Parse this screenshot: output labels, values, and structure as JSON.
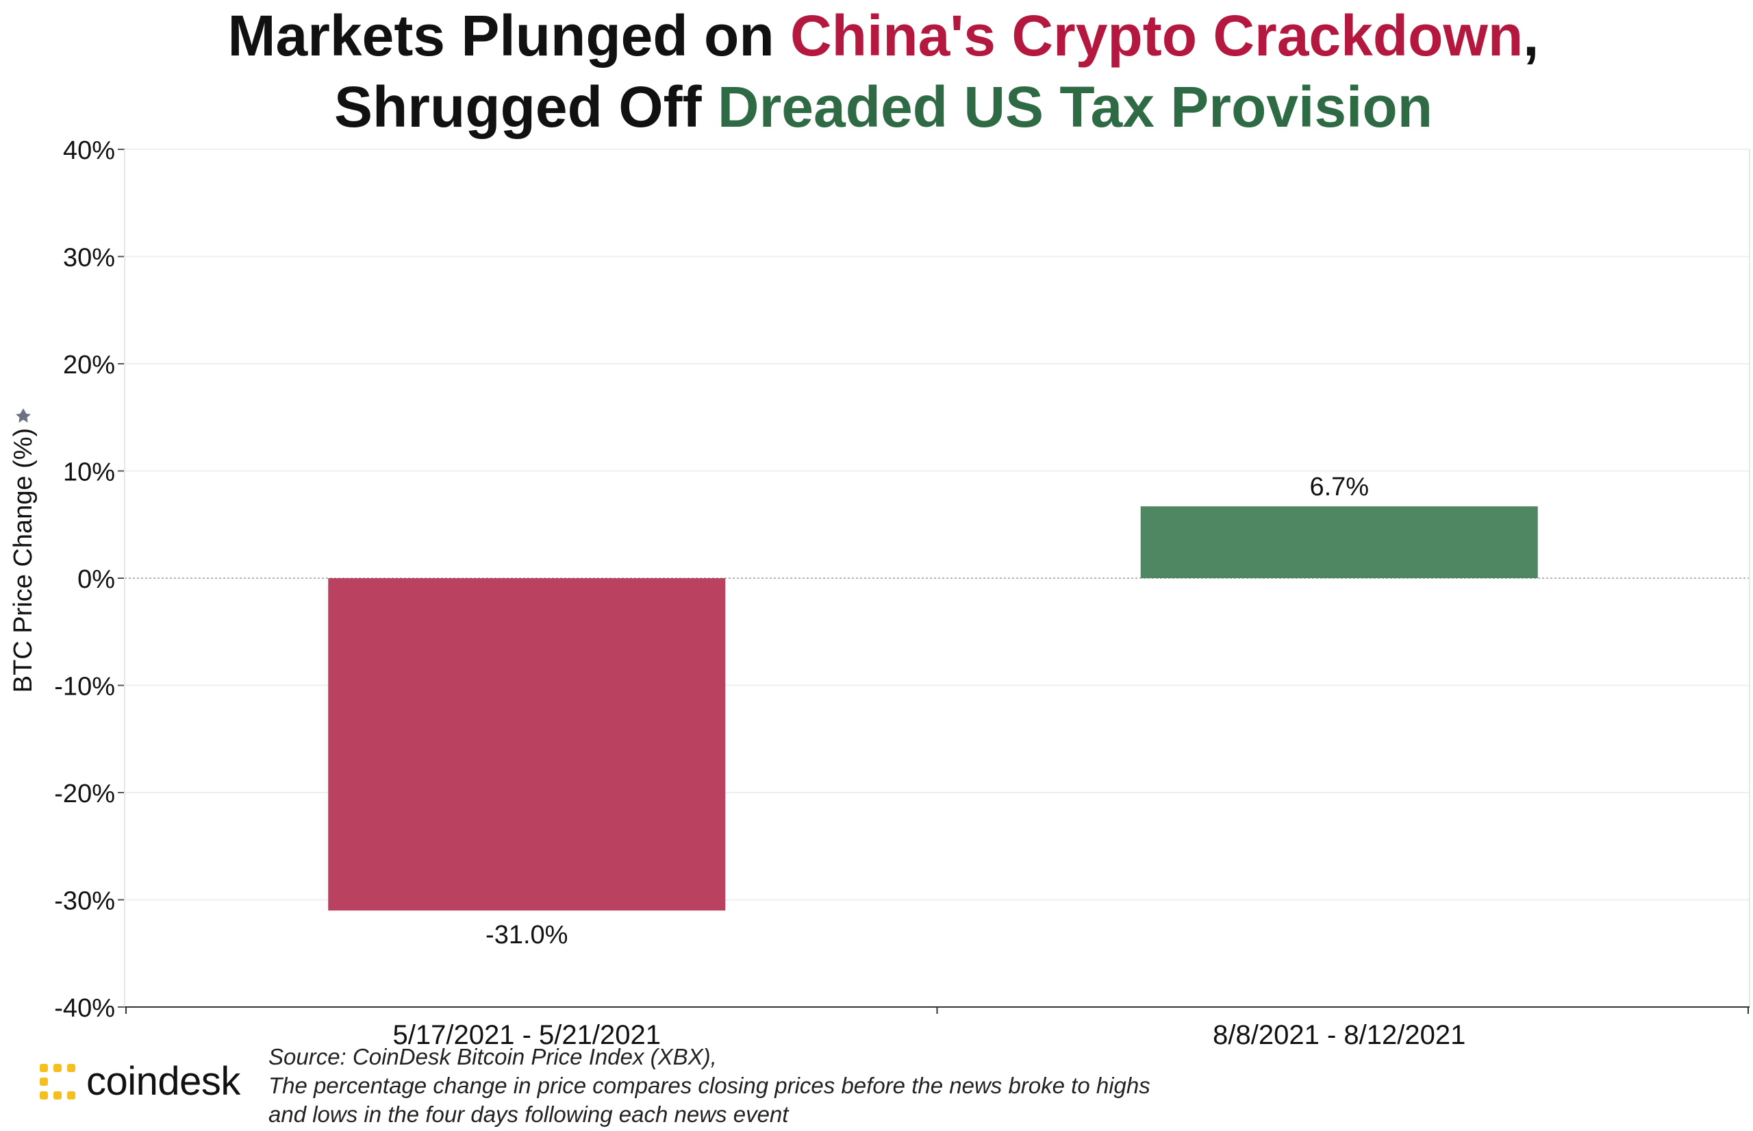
{
  "title": {
    "line1": {
      "prefix": "Markets Plunged on ",
      "highlight": "China's Crypto Crackdown",
      "suffix": ","
    },
    "line2": {
      "prefix": "Shrugged Off ",
      "highlight": "Dreaded US Tax Provision"
    }
  },
  "colors": {
    "negative": "#bb4161",
    "positive": "#4e8762",
    "title_red": "#b5183f",
    "title_green": "#2e6b45",
    "logo": "#f5c01e"
  },
  "chart_data": {
    "type": "bar",
    "categories": [
      "5/17/2021 - 5/21/2021",
      "8/8/2021 - 8/12/2021"
    ],
    "values": [
      -31.0,
      6.7
    ],
    "value_labels": [
      "-31.0%",
      "6.7%"
    ],
    "ylabel": "BTC Price Change (%)",
    "ylim": [
      -40,
      40
    ],
    "yticks": [
      40,
      30,
      20,
      10,
      0,
      -10,
      -20,
      -30,
      -40
    ],
    "ytick_labels": [
      "40%",
      "30%",
      "20%",
      "10%",
      "0%",
      "-10%",
      "-20%",
      "-30%",
      "-40%"
    ],
    "grid": true,
    "legend": "none"
  },
  "source": {
    "line1": "Source: CoinDesk Bitcoin Price Index (XBX),",
    "line2": "The percentage change in price compares closing prices before the news broke to highs",
    "line3": "and lows in the four days following each news event"
  },
  "logo": {
    "text": "coindesk",
    "icon": "coindesk-logo-icon"
  }
}
